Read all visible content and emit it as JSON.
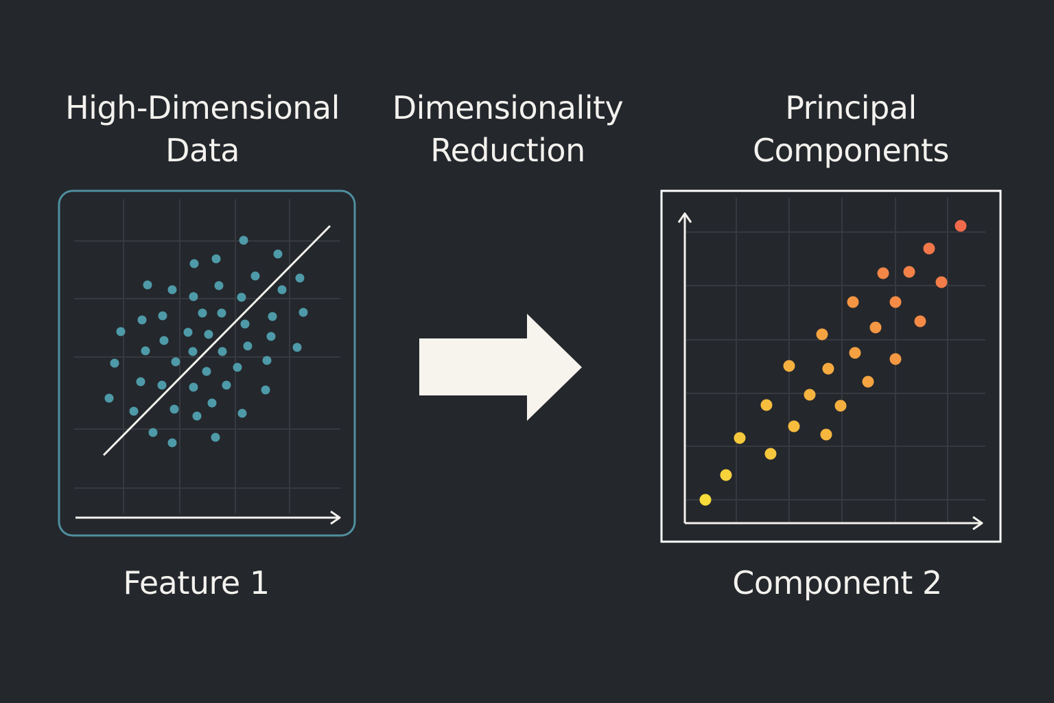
{
  "left_panel": {
    "title_lines": [
      "High-Dimensional",
      "Data"
    ],
    "axis_label": "Feature 1",
    "frame_color": "#4f8f9f",
    "point_color": "#4e9aa8"
  },
  "middle": {
    "title_lines": [
      "Dimensionality",
      "Reduction"
    ],
    "arrow_icon": "right-arrow-icon",
    "arrow_color": "#f7f4ee"
  },
  "right_panel": {
    "title_lines": [
      "Principal",
      "Components"
    ],
    "axis_label": "Component 2",
    "frame_color": "#ffffff",
    "gradient_colors": [
      "#f7dc3a",
      "#f5a840",
      "#f26a4c"
    ]
  }
}
